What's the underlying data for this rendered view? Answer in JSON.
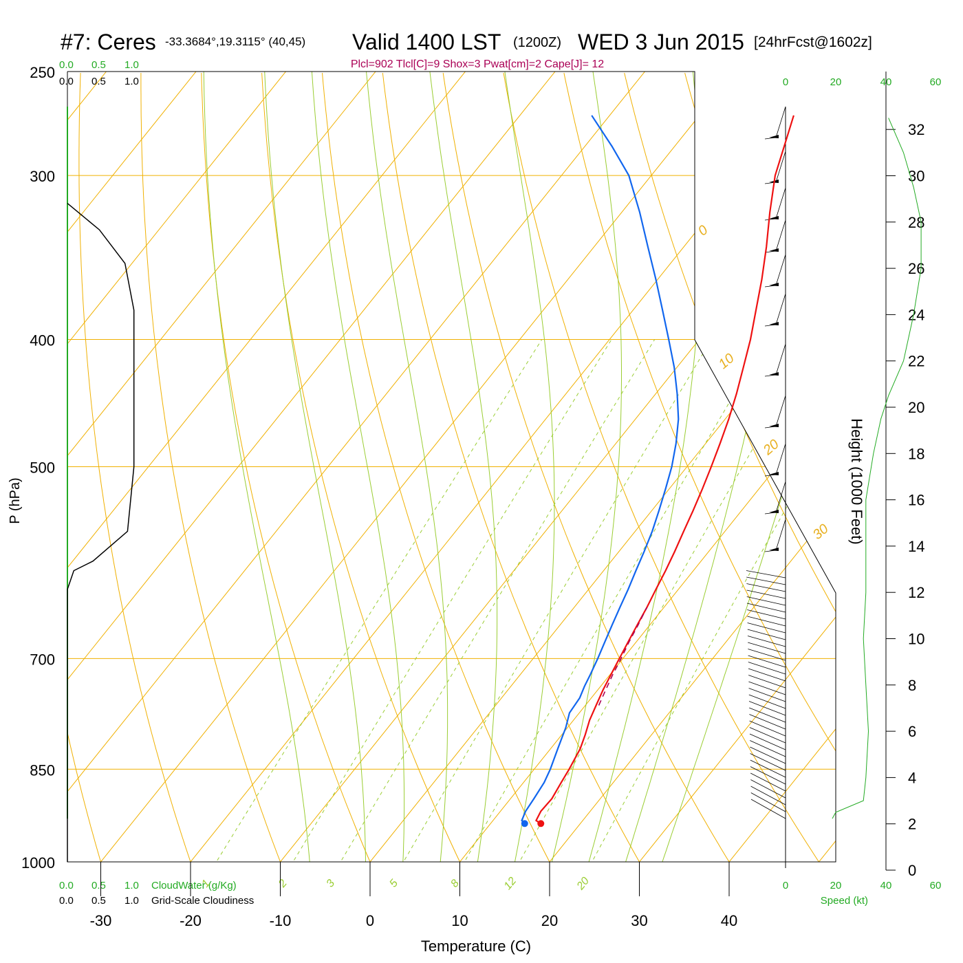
{
  "header": {
    "station": "#7: Ceres",
    "coords": "-33.3684°,19.3115° (40,45)",
    "valid": "Valid 1400 LST",
    "zulu": "(1200Z)",
    "date": "WED 3 Jun 2015",
    "forecast": "[24hrFcst@1602z]",
    "indices": "Plcl=902 Tlcl[C]=9 Shox=3 Pwat[cm]=2 Cape[J]= 12"
  },
  "cloud_axis": {
    "ticks": [
      "0.0",
      "0.5",
      "1.0"
    ],
    "cloudwater_label": "CloudWater (g/Kg)",
    "cloudiness_label": "Grid-Scale Cloudiness"
  },
  "wind_axis": {
    "ticks": [
      "0",
      "20",
      "40",
      "60"
    ],
    "label": "Speed (kt)"
  },
  "colors": {
    "isobar": "#f0b000",
    "dry_adiabat": "#f0b000",
    "moist_adiabat": "#9acd32",
    "mixing_ratio": "#9acd32",
    "temperature": "#ee1111",
    "dewpoint": "#1166ee",
    "parcel": "#aa0055",
    "cloud": "#000000",
    "wind_speed": "#22aa22",
    "indices_text": "#aa0055"
  },
  "chart_data": {
    "type": "line",
    "title": "#7: Ceres -33.3684°,19.3115° (40,45) Valid 1400 LST (1200Z) WED 3 Jun 2015 [24hrFcst@1602z]",
    "xlabel": "Temperature (C)",
    "ylabel": "P (hPa)",
    "y2label": "Height (1000 Feet)",
    "xlim": [
      -33,
      50
    ],
    "ylim": [
      1000,
      250
    ],
    "y_scale": "log",
    "x_ticks": [
      -30,
      -20,
      -10,
      0,
      10,
      20,
      30,
      40
    ],
    "y_ticks": [
      1000,
      850,
      700,
      500,
      400,
      300,
      250
    ],
    "height_ticks": [
      0,
      2,
      4,
      6,
      8,
      10,
      12,
      14,
      16,
      18,
      20,
      22,
      24,
      26,
      28,
      30,
      32
    ],
    "isotherm_labels": [
      10,
      0,
      -10,
      -20,
      -30
    ],
    "dry_adiabat_labels": [
      0,
      10,
      20,
      30
    ],
    "mixing_ratio_labels": [
      1,
      2,
      3,
      5,
      8,
      12,
      20
    ],
    "series": [
      {
        "name": "Temperature",
        "p": [
          935,
          930,
          915,
          895,
          870,
          850,
          820,
          800,
          780,
          760,
          740,
          720,
          700,
          680,
          660,
          640,
          620,
          600,
          580,
          560,
          540,
          520,
          500,
          480,
          460,
          440,
          420,
          400,
          380,
          360,
          340,
          320,
          300,
          285,
          270
        ],
        "t": [
          15.6,
          14.8,
          14.5,
          14.6,
          14.2,
          13.9,
          13.3,
          12.6,
          11.8,
          11.2,
          10.6,
          10.1,
          9.6,
          9.1,
          8.6,
          8.1,
          7.5,
          6.9,
          6.2,
          5.4,
          4.6,
          3.7,
          2.7,
          1.6,
          0.4,
          -1.0,
          -2.6,
          -4.3,
          -6.3,
          -8.4,
          -10.8,
          -13.5,
          -16.2,
          -17.8,
          -19.5
        ]
      },
      {
        "name": "Dewpoint",
        "p": [
          935,
          930,
          915,
          895,
          870,
          850,
          820,
          790,
          770,
          750,
          735,
          720,
          700,
          680,
          660,
          640,
          620,
          600,
          580,
          560,
          540,
          520,
          500,
          480,
          460,
          440,
          420,
          400,
          380,
          360,
          340,
          320,
          300,
          285,
          270
        ],
        "t": [
          13.8,
          13.2,
          12.8,
          12.6,
          12.3,
          11.8,
          10.8,
          9.8,
          8.9,
          8.7,
          8.2,
          7.8,
          7.2,
          6.5,
          5.8,
          5.1,
          4.4,
          3.6,
          2.8,
          1.9,
          0.8,
          -0.4,
          -1.7,
          -3.3,
          -5.2,
          -7.6,
          -10.3,
          -13.4,
          -16.7,
          -20.2,
          -24.0,
          -28.0,
          -32.5,
          -37.0,
          -42.0
        ]
      }
    ],
    "parcel_path": {
      "p": [
        760,
        740,
        720,
        700,
        680,
        660,
        640
      ],
      "t": [
        11.5,
        10.9,
        10.3,
        9.8,
        9.2,
        8.7,
        8.1
      ]
    },
    "grid_scale_cloudiness": {
      "p": [
        1000,
        850,
        700,
        620,
        600,
        590,
        560,
        500,
        400,
        380,
        350,
        330,
        315
      ],
      "cloudiness": [
        0.0,
        0.0,
        0.0,
        0.0,
        0.05,
        0.2,
        0.47,
        0.52,
        0.52,
        0.52,
        0.45,
        0.25,
        0.0
      ]
    },
    "wind_speed_profile": {
      "height_kft": [
        2.5,
        3.0,
        4.0,
        6.0,
        8.0,
        10.0,
        12.0,
        14.0,
        16.0,
        18.0,
        19.5,
        20.5,
        22.0,
        24.0,
        26.0,
        28.0,
        29.5,
        31.0,
        32.5
      ],
      "speed_kt": [
        0,
        11,
        12,
        13,
        12,
        11,
        12,
        12,
        12,
        15,
        18,
        21,
        27,
        31,
        34,
        34,
        31,
        27,
        21
      ]
    }
  }
}
